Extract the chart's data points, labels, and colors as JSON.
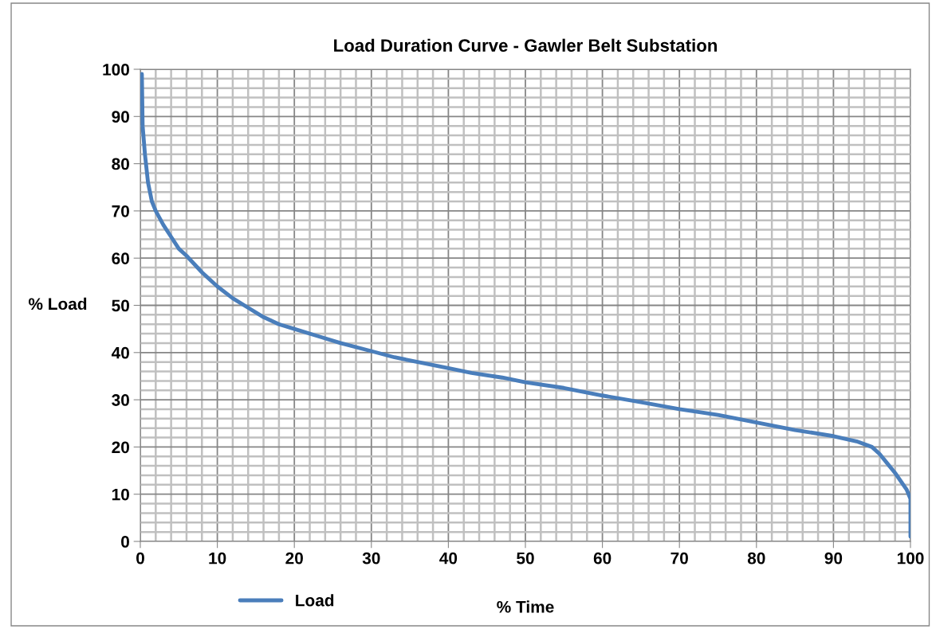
{
  "chart_data": {
    "type": "line",
    "title": "Load Duration Curve - Gawler Belt Substation",
    "xlabel": "% Time",
    "ylabel": "% Load",
    "x": [
      0.2,
      0.3,
      0.6,
      1,
      1.5,
      2,
      3,
      4,
      5,
      6,
      8,
      10,
      12,
      14,
      16,
      18,
      20,
      23,
      26,
      30,
      33,
      36,
      40,
      43,
      47,
      50,
      55,
      60,
      65,
      70,
      75,
      80,
      85,
      90,
      93,
      95,
      96,
      97,
      98,
      99.5,
      100,
      100
    ],
    "series": [
      {
        "name": "Load",
        "color": "#4a7ebb",
        "values": [
          99,
          88,
          82,
          76,
          72,
          70,
          67,
          64.5,
          62,
          60.5,
          57,
          54,
          51.5,
          49.5,
          47.5,
          46,
          45,
          43.5,
          42,
          40.3,
          39,
          38,
          36.7,
          35.7,
          34.7,
          33.7,
          32.5,
          30.9,
          29.5,
          28,
          26.8,
          25.2,
          23.6,
          22.3,
          21.2,
          20,
          18.5,
          16.5,
          14.5,
          11,
          9,
          1
        ]
      }
    ],
    "xlim": [
      0,
      100
    ],
    "ylim": [
      0,
      100
    ],
    "xticks": [
      0,
      {
        "value": 2,
        "label": null
      },
      {
        "value": 4,
        "label": null
      },
      {
        "value": 6,
        "label": null
      },
      {
        "value": 8,
        "label": null
      },
      10,
      {
        "value": 12,
        "label": null
      },
      {
        "value": 14,
        "label": null
      },
      {
        "value": 16,
        "label": null
      },
      {
        "value": 18,
        "label": null
      },
      20,
      {
        "value": 22,
        "label": null
      },
      {
        "value": 24,
        "label": null
      },
      {
        "value": 26,
        "label": null
      },
      {
        "value": 28,
        "label": null
      },
      30,
      {
        "value": 32,
        "label": null
      },
      {
        "value": 34,
        "label": null
      },
      {
        "value": 36,
        "label": null
      },
      {
        "value": 38,
        "label": null
      },
      40,
      {
        "value": 42,
        "label": null
      },
      {
        "value": 44,
        "label": null
      },
      {
        "value": 46,
        "label": null
      },
      {
        "value": 48,
        "label": null
      },
      50,
      {
        "value": 52,
        "label": null
      },
      {
        "value": 54,
        "label": null
      },
      {
        "value": 56,
        "label": null
      },
      {
        "value": 58,
        "label": null
      },
      60,
      {
        "value": 62,
        "label": null
      },
      {
        "value": 64,
        "label": null
      },
      {
        "value": 66,
        "label": null
      },
      {
        "value": 68,
        "label": null
      },
      70,
      {
        "value": 72,
        "label": null
      },
      {
        "value": 74,
        "label": null
      },
      {
        "value": 76,
        "label": null
      },
      {
        "value": 78,
        "label": null
      },
      80,
      {
        "value": 82,
        "label": null
      },
      {
        "value": 84,
        "label": null
      },
      {
        "value": 86,
        "label": null
      },
      {
        "value": 88,
        "label": null
      },
      90,
      {
        "value": 92,
        "label": null
      },
      {
        "value": 94,
        "label": null
      },
      {
        "value": 96,
        "label": null
      },
      {
        "value": 98,
        "label": null
      },
      100
    ],
    "yticks": [
      0,
      {
        "value": 2,
        "label": null
      },
      {
        "value": 4,
        "label": null
      },
      {
        "value": 6,
        "label": null
      },
      {
        "value": 8,
        "label": null
      },
      10,
      {
        "value": 12,
        "label": null
      },
      {
        "value": 14,
        "label": null
      },
      {
        "value": 16,
        "label": null
      },
      {
        "value": 18,
        "label": null
      },
      20,
      {
        "value": 22,
        "label": null
      },
      {
        "value": 24,
        "label": null
      },
      {
        "value": 26,
        "label": null
      },
      {
        "value": 28,
        "label": null
      },
      30,
      {
        "value": 32,
        "label": null
      },
      {
        "value": 34,
        "label": null
      },
      {
        "value": 36,
        "label": null
      },
      {
        "value": 38,
        "label": null
      },
      40,
      {
        "value": 42,
        "label": null
      },
      {
        "value": 44,
        "label": null
      },
      {
        "value": 46,
        "label": null
      },
      {
        "value": 48,
        "label": null
      },
      50,
      {
        "value": 52,
        "label": null
      },
      {
        "value": 54,
        "label": null
      },
      {
        "value": 56,
        "label": null
      },
      {
        "value": 58,
        "label": null
      },
      60,
      {
        "value": 62,
        "label": null
      },
      {
        "value": 64,
        "label": null
      },
      {
        "value": 66,
        "label": null
      },
      {
        "value": 68,
        "label": null
      },
      70,
      {
        "value": 72,
        "label": null
      },
      {
        "value": 74,
        "label": null
      },
      {
        "value": 76,
        "label": null
      },
      {
        "value": 78,
        "label": null
      },
      80,
      {
        "value": 82,
        "label": null
      },
      {
        "value": 84,
        "label": null
      },
      {
        "value": 86,
        "label": null
      },
      {
        "value": 88,
        "label": null
      },
      90,
      {
        "value": 92,
        "label": null
      },
      {
        "value": 94,
        "label": null
      },
      {
        "value": 96,
        "label": null
      },
      {
        "value": 98,
        "label": null
      },
      100
    ],
    "grid": true,
    "legend": "bottom left",
    "marker": "none",
    "line_style": "solid"
  }
}
